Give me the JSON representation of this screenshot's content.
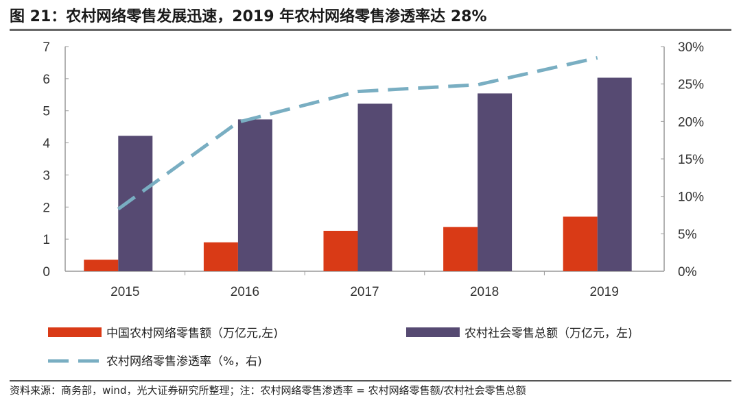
{
  "title": "图 21：农村网络零售发展迅速，2019 年农村网络零售渗透率达 28%",
  "source": "资料来源：商务部，wind，光大证券研究所整理；注：农村网络零售渗透率 = 农村网络零售额/农村社会零售总额",
  "chart_data": {
    "type": "bar",
    "categories": [
      "2015",
      "2016",
      "2017",
      "2018",
      "2019"
    ],
    "series": [
      {
        "name": "中国农村网络零售额（万亿元,左)",
        "type": "bar",
        "axis": "left",
        "color": "#d93a16",
        "values": [
          0.36,
          0.9,
          1.26,
          1.38,
          1.7
        ]
      },
      {
        "name": "农村社会零售总额（万亿元，左)",
        "type": "bar",
        "axis": "left",
        "color": "#564a72",
        "values": [
          4.22,
          4.73,
          5.22,
          5.54,
          6.03
        ]
      },
      {
        "name": "农村网络零售渗透率（%，右)",
        "type": "line",
        "style": "dashed",
        "axis": "right",
        "color": "#79aec2",
        "values": [
          8.3,
          19.9,
          24.0,
          24.9,
          28.5
        ]
      }
    ],
    "ylim": [
      0,
      7
    ],
    "yticks": [
      "0",
      "1",
      "2",
      "3",
      "4",
      "5",
      "6",
      "7"
    ],
    "y2lim": [
      0,
      30
    ],
    "y2ticks": [
      "0%",
      "5%",
      "10%",
      "15%",
      "20%",
      "25%",
      "30%"
    ],
    "grid": false,
    "legend": "bottom"
  }
}
